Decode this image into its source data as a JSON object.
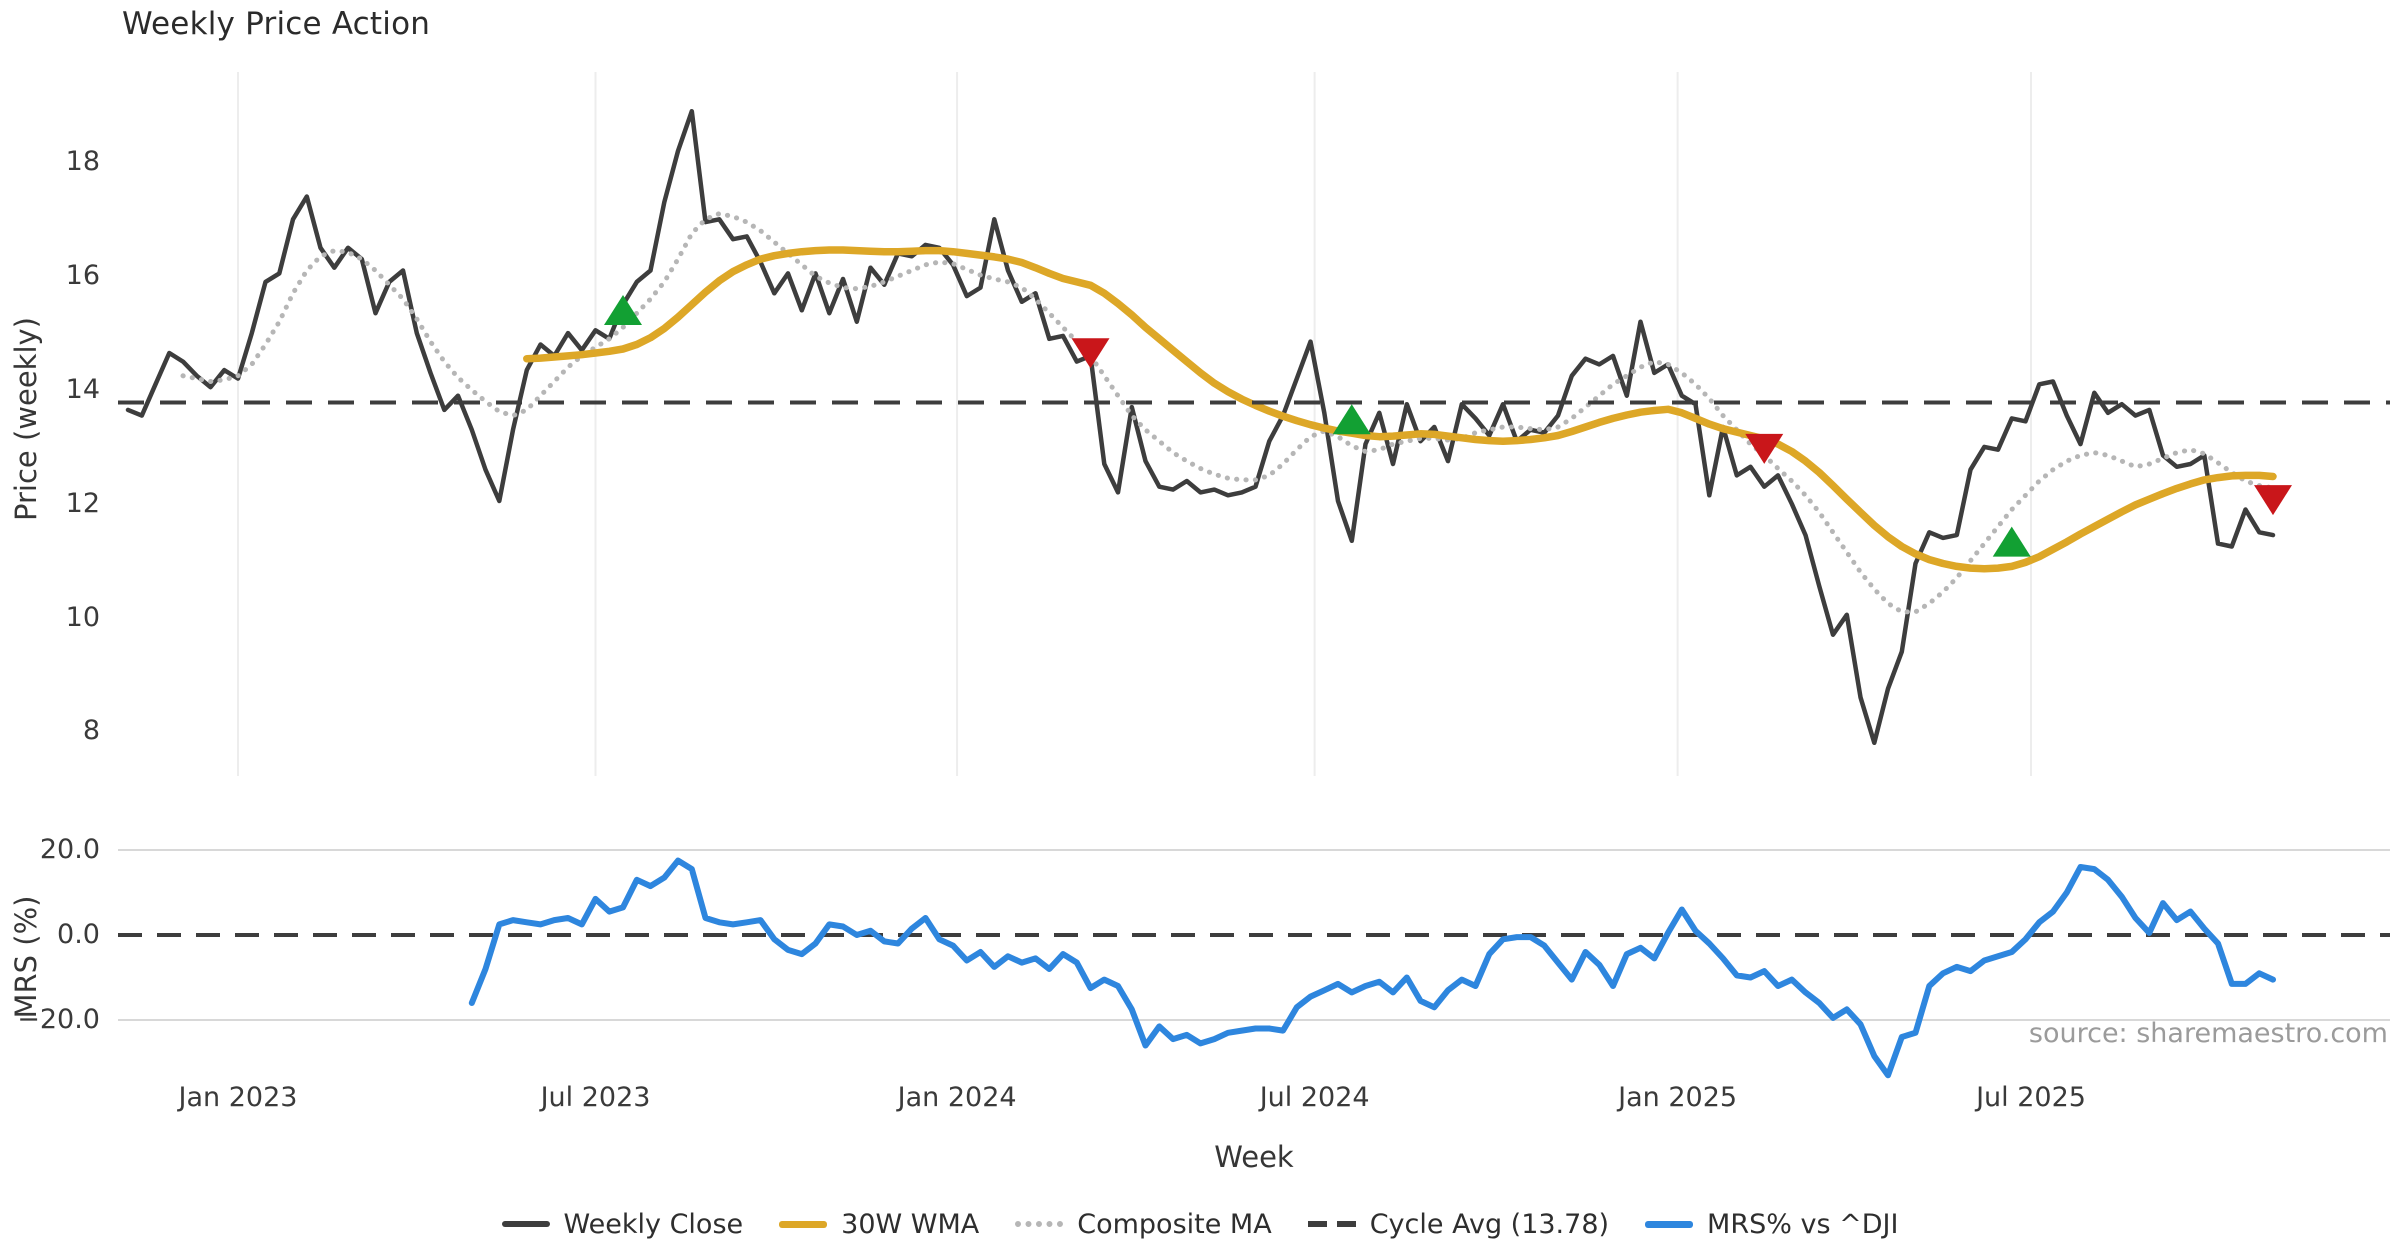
{
  "title": "Weekly Price Action",
  "xlabel": "Week",
  "source": "source: sharemaestro.com",
  "top_panel": {
    "ylabel": "Price (weekly)"
  },
  "bottom_panel": {
    "ylabel": "MRS (%)"
  },
  "legend": [
    {
      "label": "Weekly Close",
      "swatch": "solid",
      "color": "#3d3d3d"
    },
    {
      "label": "30W WMA",
      "swatch": "solid",
      "color": "#dda727"
    },
    {
      "label": "Composite MA",
      "swatch": "dotted",
      "color": "#b6b6b6"
    },
    {
      "label": "Cycle Avg (13.78)",
      "swatch": "dashed",
      "color": "#3d3d3d"
    },
    {
      "label": "MRS% vs ^DJI",
      "swatch": "solid",
      "color": "#2e86de"
    }
  ],
  "colors": {
    "background": "#ffffff",
    "weekly_close": "#3d3d3d",
    "wma": "#dda727",
    "composite": "#b6b6b6",
    "cycle_avg": "#3d3d3d",
    "mrs": "#2e86de",
    "buy_marker": "#12a033",
    "sell_marker": "#c9161a",
    "gridline_vertical": "#ededed",
    "gridline_horizontal": "#d8d8d8",
    "tick_text": "#3a3a3a",
    "source_text": "#9b9b9b"
  },
  "chart_data": [
    {
      "type": "line",
      "panel": "price",
      "title": "Weekly Price Action",
      "ylabel": "Price (weekly)",
      "ylim": [
        7.2,
        19.6
      ],
      "x_unit": "week index (0 = first plotted week, ticks show months)",
      "yticks": [
        {
          "label": "18",
          "value": 18
        },
        {
          "label": "16",
          "value": 16
        },
        {
          "label": "14",
          "value": 14
        },
        {
          "label": "12",
          "value": 12
        },
        {
          "label": "10",
          "value": 10
        },
        {
          "label": "8",
          "value": 8
        }
      ],
      "xticks": [
        {
          "label": "Jan 2023",
          "week": 8.0
        },
        {
          "label": "Jul 2023",
          "week": 34.0
        },
        {
          "label": "Jan 2024",
          "week": 60.3
        },
        {
          "label": "Jul 2024",
          "week": 86.3
        },
        {
          "label": "Jan 2025",
          "week": 112.7
        },
        {
          "label": "Jul 2025",
          "week": 138.4
        }
      ],
      "series": [
        {
          "name": "Weekly Close",
          "data_name": "weekly-close-line",
          "color": "#3d3d3d",
          "style": "solid",
          "start_week": 0,
          "values": [
            13.65,
            13.55,
            14.1,
            14.65,
            14.5,
            14.25,
            14.05,
            14.35,
            14.2,
            15.0,
            15.9,
            16.05,
            17.0,
            17.4,
            16.5,
            16.15,
            16.5,
            16.3,
            15.35,
            15.9,
            16.1,
            15.0,
            14.3,
            13.65,
            13.9,
            13.3,
            12.6,
            12.05,
            13.3,
            14.35,
            14.8,
            14.6,
            15.0,
            14.7,
            15.05,
            14.9,
            15.5,
            15.9,
            16.1,
            17.3,
            18.2,
            18.9,
            16.95,
            17.0,
            16.65,
            16.7,
            16.25,
            15.7,
            16.05,
            15.4,
            16.05,
            15.35,
            15.95,
            15.2,
            16.15,
            15.85,
            16.4,
            16.35,
            16.55,
            16.5,
            16.2,
            15.65,
            15.8,
            17.0,
            16.1,
            15.55,
            15.7,
            14.9,
            14.95,
            14.5,
            14.6,
            12.7,
            12.2,
            13.7,
            12.75,
            12.3,
            12.25,
            12.4,
            12.2,
            12.25,
            12.15,
            12.2,
            12.3,
            13.1,
            13.55,
            14.2,
            14.85,
            13.6,
            12.05,
            11.35,
            13.05,
            13.6,
            12.7,
            13.75,
            13.1,
            13.35,
            12.75,
            13.75,
            13.5,
            13.2,
            13.75,
            13.1,
            13.3,
            13.25,
            13.55,
            14.25,
            14.55,
            14.45,
            14.6,
            13.9,
            15.2,
            14.3,
            14.45,
            13.9,
            13.75,
            12.15,
            13.35,
            12.5,
            12.65,
            12.3,
            12.5,
            12.0,
            11.45,
            10.55,
            9.7,
            10.05,
            8.6,
            7.8,
            8.75,
            9.4,
            10.95,
            11.5,
            11.4,
            11.45,
            12.6,
            13.0,
            12.95,
            13.5,
            13.45,
            14.1,
            14.15,
            13.55,
            13.05,
            13.95,
            13.6,
            13.75,
            13.55,
            13.65,
            12.85,
            12.65,
            12.7,
            12.85,
            11.3,
            11.25,
            11.9,
            11.5,
            11.45
          ]
        },
        {
          "name": "Composite MA",
          "data_name": "composite-ma-line",
          "color": "#b6b6b6",
          "style": "dotted",
          "start_week": 4,
          "values": [
            14.25,
            14.2,
            14.15,
            14.18,
            14.25,
            14.45,
            14.8,
            15.2,
            15.7,
            16.1,
            16.35,
            16.45,
            16.42,
            16.3,
            16.1,
            15.85,
            15.6,
            15.25,
            14.85,
            14.5,
            14.22,
            14.0,
            13.8,
            13.62,
            13.55,
            13.65,
            13.9,
            14.15,
            14.4,
            14.6,
            14.75,
            14.9,
            15.1,
            15.35,
            15.6,
            15.9,
            16.3,
            16.75,
            17.0,
            17.1,
            17.05,
            16.95,
            16.8,
            16.6,
            16.4,
            16.2,
            16.0,
            15.88,
            15.8,
            15.78,
            15.82,
            15.9,
            16.0,
            16.1,
            16.2,
            16.25,
            16.22,
            16.12,
            16.02,
            15.95,
            15.9,
            15.8,
            15.6,
            15.35,
            15.1,
            14.85,
            14.6,
            14.25,
            13.9,
            13.55,
            13.3,
            13.1,
            12.9,
            12.75,
            12.62,
            12.52,
            12.45,
            12.42,
            12.42,
            12.5,
            12.7,
            12.95,
            13.18,
            13.28,
            13.18,
            13.02,
            12.92,
            12.95,
            13.05,
            13.1,
            13.15,
            13.15,
            13.12,
            13.15,
            13.25,
            13.3,
            13.35,
            13.35,
            13.32,
            13.3,
            13.35,
            13.5,
            13.7,
            13.9,
            14.1,
            14.25,
            14.4,
            14.5,
            14.45,
            14.3,
            14.1,
            13.85,
            13.55,
            13.3,
            13.05,
            12.85,
            12.62,
            12.4,
            12.15,
            11.85,
            11.5,
            11.15,
            10.8,
            10.5,
            10.25,
            10.1,
            10.1,
            10.25,
            10.45,
            10.7,
            11.0,
            11.3,
            11.6,
            11.9,
            12.15,
            12.4,
            12.6,
            12.75,
            12.85,
            12.9,
            12.85,
            12.75,
            12.65,
            12.7,
            12.8,
            12.9,
            12.95,
            12.88,
            12.72,
            12.55,
            12.4,
            12.32,
            12.28
          ]
        },
        {
          "name": "30W WMA",
          "data_name": "wma-line",
          "color": "#dda727",
          "style": "solid",
          "start_week": 29,
          "values": [
            14.55,
            14.56,
            14.58,
            14.6,
            14.62,
            14.65,
            14.68,
            14.72,
            14.8,
            14.92,
            15.08,
            15.28,
            15.5,
            15.72,
            15.92,
            16.08,
            16.2,
            16.3,
            16.36,
            16.4,
            16.43,
            16.45,
            16.46,
            16.46,
            16.45,
            16.44,
            16.43,
            16.43,
            16.44,
            16.45,
            16.45,
            16.43,
            16.4,
            16.37,
            16.34,
            16.3,
            16.24,
            16.15,
            16.05,
            15.96,
            15.9,
            15.84,
            15.7,
            15.52,
            15.32,
            15.1,
            14.9,
            14.7,
            14.5,
            14.3,
            14.12,
            13.97,
            13.84,
            13.73,
            13.63,
            13.54,
            13.46,
            13.39,
            13.33,
            13.28,
            13.24,
            13.2,
            13.18,
            13.19,
            13.21,
            13.23,
            13.22,
            13.19,
            13.16,
            13.13,
            13.11,
            13.1,
            13.11,
            13.13,
            13.16,
            13.2,
            13.27,
            13.35,
            13.43,
            13.5,
            13.56,
            13.61,
            13.64,
            13.66,
            13.6,
            13.5,
            13.4,
            13.32,
            13.26,
            13.2,
            13.14,
            13.05,
            12.92,
            12.75,
            12.55,
            12.32,
            12.08,
            11.85,
            11.62,
            11.42,
            11.25,
            11.12,
            11.02,
            10.95,
            10.9,
            10.87,
            10.86,
            10.87,
            10.9,
            10.97,
            11.07,
            11.2,
            11.33,
            11.47,
            11.6,
            11.73,
            11.86,
            11.98,
            12.08,
            12.18,
            12.27,
            12.35,
            12.42,
            12.46,
            12.49,
            12.5,
            12.5,
            12.48
          ]
        },
        {
          "name": "Cycle Avg (13.78)",
          "data_name": "cycle-avg-line",
          "type": "hline",
          "color": "#3d3d3d",
          "style": "dashed",
          "value": 13.78
        }
      ],
      "markers": [
        {
          "name": "Buy signal",
          "data_name": "buy-marker",
          "shape": "triangle-up",
          "direction": "up",
          "color": "#12a033",
          "points": [
            [
              36,
              15.37
            ],
            [
              89,
              13.45
            ],
            [
              137,
              11.3
            ]
          ]
        },
        {
          "name": "Sell signal",
          "data_name": "sell-marker",
          "shape": "triangle-down",
          "direction": "down",
          "color": "#c9161a",
          "points": [
            [
              70,
              14.68
            ],
            [
              119,
              13.0
            ],
            [
              156,
              12.1
            ]
          ]
        }
      ]
    },
    {
      "type": "line",
      "panel": "mrs",
      "ylabel": "MRS (%)",
      "ylim": [
        -36,
        22
      ],
      "gridlines": [
        20,
        -20
      ],
      "zero_line": {
        "value": 0,
        "style": "dashed",
        "color": "#3d3d3d"
      },
      "yticks": [
        {
          "label": "20.0",
          "value": 20
        },
        {
          "label": "0.0",
          "value": 0
        },
        {
          "label": "−20.0",
          "value": -20
        }
      ],
      "series": [
        {
          "name": "MRS% vs ^DJI",
          "data_name": "mrs-line",
          "color": "#2e86de",
          "style": "solid",
          "start_week": 25,
          "values": [
            -16.0,
            -8.0,
            2.5,
            3.5,
            3.0,
            2.5,
            3.5,
            4.0,
            2.5,
            8.5,
            5.5,
            6.5,
            13.0,
            11.5,
            13.5,
            17.5,
            15.5,
            4.0,
            3.0,
            2.5,
            3.0,
            3.5,
            -1.0,
            -3.5,
            -4.5,
            -2.0,
            2.5,
            2.0,
            0.0,
            1.0,
            -1.5,
            -2.0,
            1.5,
            4.0,
            -1.0,
            -2.5,
            -6.0,
            -4.0,
            -7.5,
            -5.0,
            -6.5,
            -5.5,
            -8.0,
            -4.5,
            -6.5,
            -12.5,
            -10.5,
            -12.0,
            -17.5,
            -26.0,
            -21.5,
            -24.5,
            -23.5,
            -25.5,
            -24.5,
            -23.0,
            -22.5,
            -22.0,
            -22.0,
            -22.5,
            -17.0,
            -14.5,
            -13.0,
            -11.5,
            -13.5,
            -12.0,
            -11.0,
            -13.5,
            -10.0,
            -15.5,
            -17.0,
            -13.0,
            -10.5,
            -12.0,
            -4.5,
            -1.0,
            -0.5,
            -0.5,
            -2.5,
            -6.5,
            -10.5,
            -4.0,
            -7.0,
            -12.0,
            -4.5,
            -3.0,
            -5.5,
            0.5,
            6.0,
            1.0,
            -2.0,
            -5.5,
            -9.5,
            -10.0,
            -8.5,
            -12.0,
            -10.5,
            -13.5,
            -16.0,
            -19.5,
            -17.5,
            -21.0,
            -28.5,
            -33.0,
            -24.0,
            -23.0,
            -12.0,
            -9.0,
            -7.5,
            -8.5,
            -6.0,
            -5.0,
            -4.0,
            -1.0,
            3.0,
            5.5,
            10.0,
            16.0,
            15.5,
            13.0,
            9.0,
            4.0,
            0.5,
            7.5,
            3.5,
            5.5,
            1.5,
            -2.0,
            -11.5,
            -11.5,
            -9.0,
            -10.5
          ]
        }
      ]
    }
  ]
}
